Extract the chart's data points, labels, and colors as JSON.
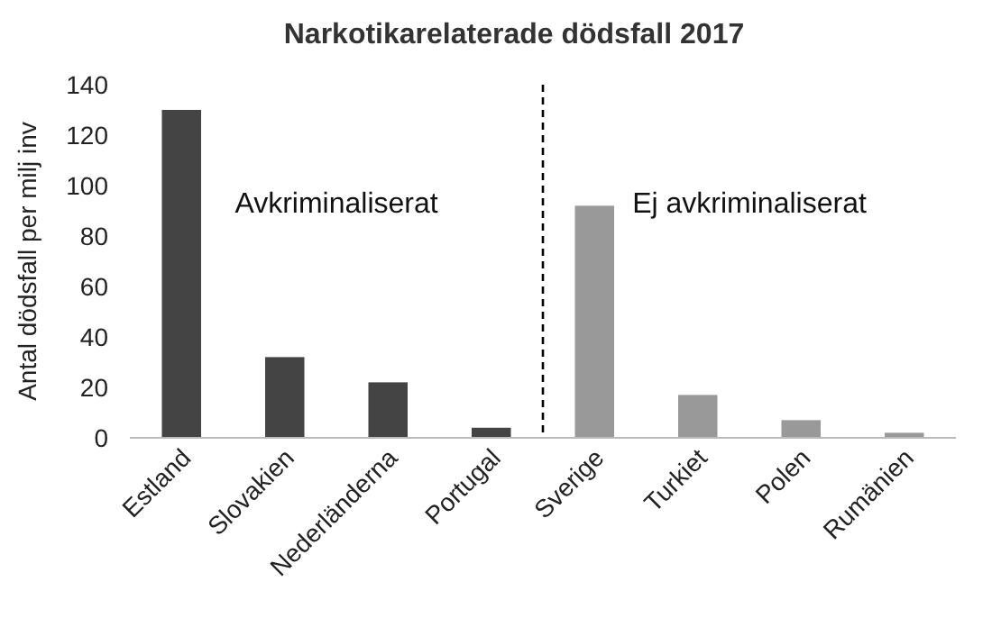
{
  "chart_data": {
    "type": "bar",
    "title": "Narkotikarelaterade dödsfall 2017",
    "ylabel": "Antal dödsfall per milj inv",
    "categories": [
      "Estland",
      "Slovakien",
      "Nederländerna",
      "Portugal",
      "Sverige",
      "Turkiet",
      "Polen",
      "Rumänien"
    ],
    "values": [
      130,
      32,
      22,
      4,
      92,
      17,
      7,
      2
    ],
    "colors": [
      "#444444",
      "#444444",
      "#444444",
      "#444444",
      "#999999",
      "#999999",
      "#999999",
      "#999999"
    ],
    "ylim": [
      0,
      140
    ],
    "yticks": [
      0,
      20,
      40,
      60,
      80,
      100,
      120,
      140
    ],
    "grid": false,
    "annotations": [
      "Avkriminaliserat",
      "Ej avkriminaliserat"
    ]
  }
}
